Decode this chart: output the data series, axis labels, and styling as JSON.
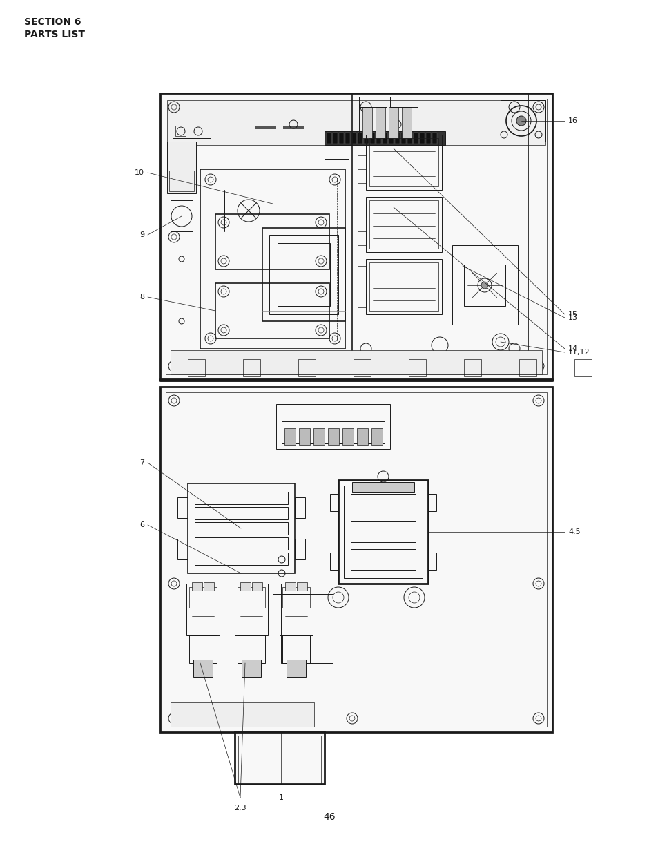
{
  "page_number": "46",
  "section_title": "SECTION 6",
  "section_subtitle": "PARTS LIST",
  "bg_color": "#ffffff",
  "line_color": "#1a1a1a",
  "title_fontsize": 10,
  "page_num_fontsize": 10,
  "label_fontsize": 8
}
